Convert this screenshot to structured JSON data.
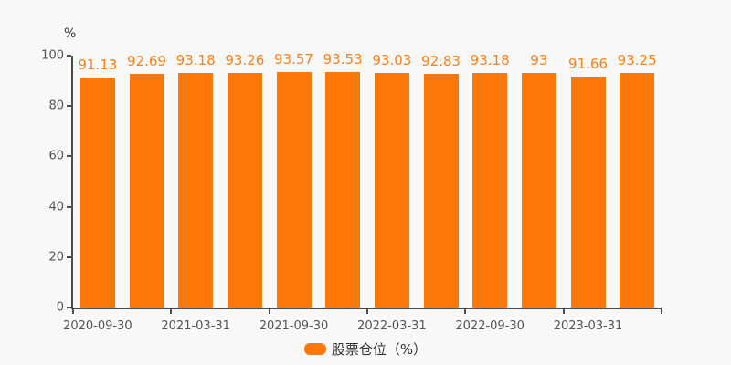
{
  "chart_data": {
    "type": "bar",
    "title": "",
    "y_axis": {
      "title": "%",
      "min": 0,
      "max": 100,
      "ticks": [
        0,
        20,
        40,
        60,
        80,
        100
      ]
    },
    "x_tick_labels": [
      "2020-09-30",
      "2021-03-31",
      "2021-09-30",
      "2022-03-31",
      "2022-09-30",
      "2023-03-31"
    ],
    "x_label_every_n_bars": 2,
    "series": [
      {
        "name": "股票仓位（%）",
        "values": [
          91.13,
          92.69,
          93.18,
          93.26,
          93.57,
          93.53,
          93.03,
          92.83,
          93.18,
          93,
          91.66,
          93.25
        ],
        "value_labels": [
          "91.13",
          "92.69",
          "93.18",
          "93.26",
          "93.57",
          "93.53",
          "93.03",
          "92.83",
          "93.18",
          "93",
          "91.66",
          "93.25"
        ]
      }
    ],
    "legend": {
      "label": "股票仓位（%）",
      "position": "bottom-center"
    },
    "grid_lines": false,
    "colors": {
      "bar": "#fb7709",
      "value_label": "#fc8016",
      "axis_line": "#4d4d4d",
      "axis_text": "#555555",
      "legend_text": "#333333",
      "background": "#f8f8f8"
    }
  }
}
